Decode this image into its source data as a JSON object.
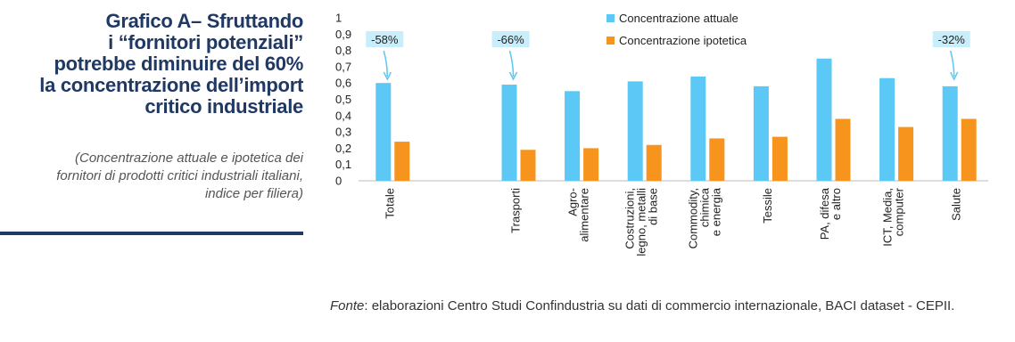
{
  "header": {
    "title": [
      "Grafico A– Sfruttando",
      "i “fornitori potenziali”",
      "potrebbe diminuire del 60%",
      "la concentrazione dell’import",
      "critico industriale"
    ],
    "subtitle": [
      "(Concentrazione attuale e ipotetica dei",
      "fornitori di prodotti critici industriali italiani,",
      "indice per filiera)"
    ]
  },
  "chart_data": {
    "type": "bar",
    "categories": [
      [
        "Totale"
      ],
      null,
      [
        "Trasporti"
      ],
      [
        "Agro-",
        "alimentare"
      ],
      [
        "Costruzioni,",
        "legno, metalli",
        "di base"
      ],
      [
        "Commodity,",
        "chimica",
        "e energia"
      ],
      [
        "Tessile"
      ],
      [
        "PA, difesa",
        "e altro"
      ],
      [
        "ICT, Media,",
        "computer"
      ],
      [
        "Salute"
      ]
    ],
    "series": [
      {
        "name": "Concentrazione attuale",
        "color": "#5bc8f5",
        "values": [
          0.6,
          null,
          0.59,
          0.55,
          0.61,
          0.64,
          0.58,
          0.75,
          0.63,
          0.58
        ]
      },
      {
        "name": "Concentrazione ipotetica",
        "color": "#f7941d",
        "values": [
          0.24,
          null,
          0.19,
          0.2,
          0.22,
          0.26,
          0.27,
          0.38,
          0.33,
          0.38
        ]
      }
    ],
    "ylim": [
      0,
      1
    ],
    "yticks": [
      0,
      {
        "value": 0.1,
        "label": "0,1"
      },
      {
        "value": 0.2,
        "label": "0,2"
      },
      {
        "value": 0.3,
        "label": "0,3"
      },
      {
        "value": 0.4,
        "label": "0,4"
      },
      {
        "value": 0.5,
        "label": "0,5"
      },
      {
        "value": 0.6,
        "label": "0,6"
      },
      {
        "value": 0.7,
        "label": "0,7"
      },
      {
        "value": 0.8,
        "label": "0,8"
      },
      {
        "value": 0.9,
        "label": "0,9"
      },
      1
    ],
    "annotations": [
      "-58%",
      "-66%",
      "-32%"
    ]
  },
  "source": {
    "label": "Fonte",
    "text": ": elaborazioni Centro Studi Confindustria su dati di commercio internazionale, BACI dataset - CEPII."
  }
}
